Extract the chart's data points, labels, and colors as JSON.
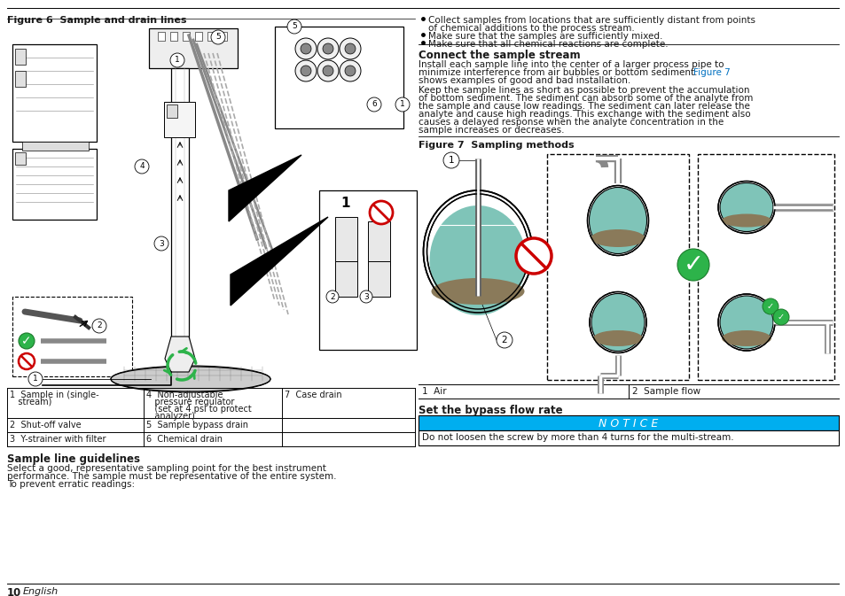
{
  "page_bg": "#ffffff",
  "fig6_title": "Figure 6  Sample and drain lines",
  "fig7_title": "Figure 7  Sampling methods",
  "table_col1": [
    "1  Sample in (single-\n   stream)",
    "2  Shut-off valve",
    "3  Y-strainer with filter"
  ],
  "table_col2": [
    "4  Non-adjustable\n   pressure regulator\n   (set at 4 psi to protect\n   analyzer)",
    "5  Sample bypass drain",
    "6  Chemical drain"
  ],
  "table_col3": [
    "7  Case drain",
    "",
    ""
  ],
  "section1_title": "Sample line guidelines",
  "section1_body": [
    "Select a good, representative sampling point for the best instrument",
    "performance. The sample must be representative of the entire system.",
    "To prevent erratic readings:"
  ],
  "bullet1a": "Collect samples from locations that are sufficiently distant from points",
  "bullet1b": "of chemical additions to the process stream.",
  "bullet2": "Make sure that the samples are sufficiently mixed.",
  "bullet3": "Make sure that all chemical reactions are complete.",
  "section2_title": "Connect the sample stream",
  "para2_l1": "Install each sample line into the center of a larger process pipe to",
  "para2_l2a": "minimize interference from air bubbles or bottom sediment. ",
  "para2_l2b": "Figure 7",
  "para2_l3": "shows examples of good and bad installation.",
  "para3_l1": "Keep the sample lines as short as possible to prevent the accumulation",
  "para3_l2": "of bottom sediment. The sediment can absorb some of the analyte from",
  "para3_l3": "the sample and cause low readings. The sediment can later release the",
  "para3_l4": "analyte and cause high readings. This exchange with the sediment also",
  "para3_l5": "causes a delayed response when the analyte concentration in the",
  "para3_l6": "sample increases or decreases.",
  "fig7_l1": "1  Air",
  "fig7_l2": "2  Sample flow",
  "section3_title": "Set the bypass flow rate",
  "notice_title": "N O T I C E",
  "notice_bg": "#00aeef",
  "notice_text": "Do not loosen the screw by more than 4 turns for the multi-stream.",
  "footer_page": "10",
  "footer_lang": "English",
  "fig7ref_color": "#0070c0",
  "green": "#2db34a",
  "red": "#cc0000",
  "teal": "#7fc4b8"
}
